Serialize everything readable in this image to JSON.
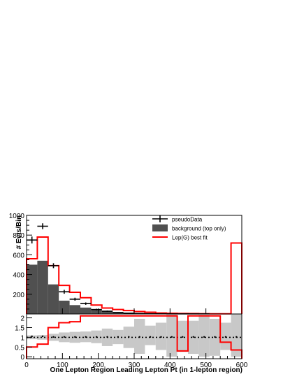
{
  "chart_data": {
    "type": "histogram-with-ratio",
    "xlabel": "One Lepton Region Leading Lepton Pt (in 1-lepton region)",
    "ylabel": "# Evts/Bin",
    "xlim": [
      0,
      600
    ],
    "ylim_main": [
      0,
      1000
    ],
    "ylim_ratio": [
      -0.1,
      2.2
    ],
    "x_ticks": [
      0,
      100,
      200,
      300,
      400,
      500,
      600
    ],
    "y_ticks_main": [
      200,
      400,
      600,
      800,
      1000
    ],
    "y_ticks_ratio": [
      0,
      0.5,
      1,
      1.5,
      2
    ],
    "legend_position": "top-right",
    "legend": [
      {
        "label": "pseudoData",
        "style": "marker-cross",
        "color": "#000000"
      },
      {
        "label": "background (top only)",
        "style": "filled-box",
        "color": "#505050"
      },
      {
        "label": "Lep(G) best fit",
        "style": "line",
        "color": "#ff0000"
      }
    ],
    "bin_edges": [
      0,
      30,
      60,
      90,
      120,
      150,
      180,
      210,
      240,
      270,
      300,
      330,
      360,
      390,
      420,
      450,
      480,
      510,
      540,
      570,
      600
    ],
    "background": [
      500,
      540,
      300,
      135,
      90,
      65,
      40,
      25,
      15,
      10,
      5,
      4,
      3,
      2,
      2,
      2,
      1,
      1,
      1,
      1
    ],
    "fit": [
      560,
      780,
      490,
      290,
      220,
      165,
      90,
      60,
      45,
      35,
      25,
      18,
      10,
      7,
      5,
      4,
      3,
      2,
      2,
      720
    ],
    "data_points": [
      {
        "x": 15,
        "y": 750,
        "err": 35
      },
      {
        "x": 45,
        "y": 890,
        "err": 30
      },
      {
        "x": 75,
        "y": 490,
        "err": 25
      },
      {
        "x": 105,
        "y": 225,
        "err": 20
      },
      {
        "x": 135,
        "y": 150,
        "err": 15
      },
      {
        "x": 165,
        "y": 105,
        "err": 12
      },
      {
        "x": 195,
        "y": 45,
        "err": 8
      },
      {
        "x": 225,
        "y": 28,
        "err": 6
      },
      {
        "x": 255,
        "y": 15,
        "err": 4
      },
      {
        "x": 285,
        "y": 8,
        "err": 3
      },
      {
        "x": 315,
        "y": 5,
        "err": 2
      },
      {
        "x": 345,
        "y": 3,
        "err": 2
      },
      {
        "x": 375,
        "y": 2,
        "err": 1
      },
      {
        "x": 405,
        "y": 1,
        "err": 1
      },
      {
        "x": 435,
        "y": 1,
        "err": 1
      },
      {
        "x": 465,
        "y": 1,
        "err": 1
      },
      {
        "x": 495,
        "y": 1,
        "err": 1
      }
    ],
    "ratio_line": [
      0.5,
      0.65,
      1.5,
      1.75,
      1.8,
      2.1,
      2.1,
      2.1,
      2.1,
      2.1,
      2.1,
      2.1,
      2.1,
      2.1,
      0.3,
      2.1,
      2.1,
      2.1,
      0.75,
      0.35
    ],
    "ratio_points": [
      1.05,
      1.05,
      1.02,
      1.02,
      1.02,
      1.02,
      1.02,
      1.02,
      1.02,
      1.02,
      1.02,
      1.02,
      1.02,
      1.02,
      1.02,
      1.02,
      1.02,
      1.02,
      1.02,
      1.02
    ],
    "ratio_reference": 1.0,
    "ratio_band": [
      [
        0.9,
        1.1
      ],
      [
        0.88,
        1.12
      ],
      [
        0.82,
        1.18
      ],
      [
        0.75,
        1.25
      ],
      [
        0.72,
        1.28
      ],
      [
        0.75,
        1.3
      ],
      [
        0.7,
        1.35
      ],
      [
        0.55,
        1.45
      ],
      [
        0.65,
        1.38
      ],
      [
        0.45,
        1.55
      ],
      [
        0.15,
        1.95
      ],
      [
        0.6,
        1.6
      ],
      [
        0.35,
        1.75
      ],
      [
        0.0,
        2.2
      ],
      [
        0.25,
        1.85
      ],
      [
        0.15,
        1.85
      ],
      [
        0.0,
        2.2
      ],
      [
        0.05,
        1.95
      ],
      [
        0.35,
        1.75
      ],
      [
        0.0,
        2.2
      ]
    ]
  }
}
